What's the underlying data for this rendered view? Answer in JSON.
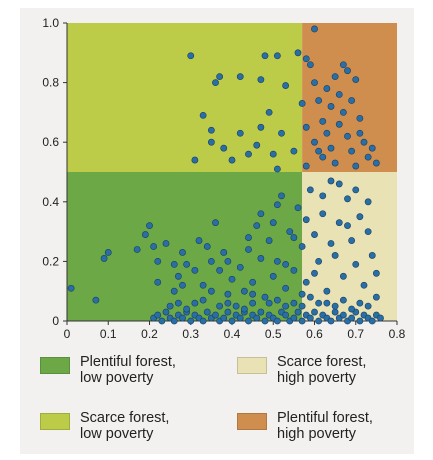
{
  "chart_data": {
    "type": "scatter",
    "title": "",
    "xlabel": "",
    "ylabel": "",
    "xlim": [
      0,
      0.8
    ],
    "ylim": [
      0,
      1.0
    ],
    "x_ticks": [
      "0",
      "0.1",
      "0.2",
      "0.3",
      "0.4",
      "0.5",
      "0.6",
      "0.7",
      "0.8"
    ],
    "y_ticks": [
      "0",
      "0.2",
      "0.4",
      "0.6",
      "0.8",
      "1.0"
    ],
    "grid": false,
    "legend_position": "bottom",
    "regions": [
      {
        "label": "Plentiful forest,\nlow poverty",
        "color": "#6ca846",
        "x": [
          0,
          0.57
        ],
        "y": [
          0,
          0.5
        ]
      },
      {
        "label": "Scarce forest,\nhigh poverty",
        "color": "#e9e2b4",
        "x": [
          0.57,
          0.8
        ],
        "y": [
          0,
          0.5
        ]
      },
      {
        "label": "Scarce forest,\nlow poverty",
        "color": "#bccc48",
        "x": [
          0,
          0.57
        ],
        "y": [
          0.5,
          1.0
        ]
      },
      {
        "label": "Plentiful forest,\nhigh poverty",
        "color": "#cf8e4e",
        "x": [
          0.57,
          0.8
        ],
        "y": [
          0.5,
          1.0
        ]
      }
    ],
    "marker_color": "#2a6ea6",
    "points": [
      [
        0.01,
        0.11
      ],
      [
        0.07,
        0.07
      ],
      [
        0.09,
        0.21
      ],
      [
        0.1,
        0.23
      ],
      [
        0.17,
        0.24
      ],
      [
        0.19,
        0.29
      ],
      [
        0.2,
        0.32
      ],
      [
        0.21,
        0.25
      ],
      [
        0.22,
        0.2
      ],
      [
        0.24,
        0.26
      ],
      [
        0.26,
        0.19
      ],
      [
        0.27,
        0.15
      ],
      [
        0.28,
        0.23
      ],
      [
        0.28,
        0.12
      ],
      [
        0.29,
        0.19
      ],
      [
        0.31,
        0.17
      ],
      [
        0.32,
        0.27
      ],
      [
        0.33,
        0.12
      ],
      [
        0.34,
        0.25
      ],
      [
        0.35,
        0.2
      ],
      [
        0.36,
        0.33
      ],
      [
        0.37,
        0.17
      ],
      [
        0.38,
        0.23
      ],
      [
        0.39,
        0.09
      ],
      [
        0.4,
        0.14
      ],
      [
        0.41,
        0.05
      ],
      [
        0.42,
        0.18
      ],
      [
        0.43,
        0.1
      ],
      [
        0.44,
        0.24
      ],
      [
        0.45,
        0.13
      ],
      [
        0.46,
        0.32
      ],
      [
        0.47,
        0.21
      ],
      [
        0.48,
        0.08
      ],
      [
        0.49,
        0.27
      ],
      [
        0.5,
        0.15
      ],
      [
        0.5,
        0.33
      ],
      [
        0.51,
        0.2
      ],
      [
        0.52,
        0.42
      ],
      [
        0.53,
        0.11
      ],
      [
        0.54,
        0.3
      ],
      [
        0.55,
        0.17
      ],
      [
        0.56,
        0.38
      ],
      [
        0.57,
        0.25
      ],
      [
        0.58,
        0.13
      ],
      [
        0.59,
        0.44
      ],
      [
        0.6,
        0.29
      ],
      [
        0.61,
        0.2
      ],
      [
        0.62,
        0.36
      ],
      [
        0.63,
        0.1
      ],
      [
        0.64,
        0.47
      ],
      [
        0.65,
        0.22
      ],
      [
        0.66,
        0.33
      ],
      [
        0.67,
        0.15
      ],
      [
        0.68,
        0.41
      ],
      [
        0.69,
        0.27
      ],
      [
        0.7,
        0.19
      ],
      [
        0.71,
        0.35
      ],
      [
        0.72,
        0.12
      ],
      [
        0.73,
        0.3
      ],
      [
        0.74,
        0.22
      ],
      [
        0.75,
        0.16
      ],
      [
        0.44,
        0.28
      ],
      [
        0.47,
        0.36
      ],
      [
        0.51,
        0.39
      ],
      [
        0.55,
        0.28
      ],
      [
        0.58,
        0.34
      ],
      [
        0.62,
        0.42
      ],
      [
        0.66,
        0.46
      ],
      [
        0.7,
        0.44
      ],
      [
        0.73,
        0.4
      ],
      [
        0.6,
        0.16
      ],
      [
        0.64,
        0.26
      ],
      [
        0.68,
        0.32
      ],
      [
        0.53,
        0.19
      ],
      [
        0.57,
        0.09
      ],
      [
        0.45,
        0.06
      ],
      [
        0.39,
        0.2
      ],
      [
        0.35,
        0.1
      ],
      [
        0.31,
        0.06
      ],
      [
        0.26,
        0.1
      ],
      [
        0.22,
        0.13
      ],
      [
        0.21,
        0.01
      ],
      [
        0.22,
        0.02
      ],
      [
        0.23,
        0.0
      ],
      [
        0.24,
        0.03
      ],
      [
        0.25,
        0.01
      ],
      [
        0.26,
        0.0
      ],
      [
        0.27,
        0.02
      ],
      [
        0.28,
        0.01
      ],
      [
        0.29,
        0.03
      ],
      [
        0.3,
        0.0
      ],
      [
        0.31,
        0.02
      ],
      [
        0.32,
        0.01
      ],
      [
        0.33,
        0.0
      ],
      [
        0.34,
        0.03
      ],
      [
        0.35,
        0.01
      ],
      [
        0.36,
        0.02
      ],
      [
        0.37,
        0.0
      ],
      [
        0.38,
        0.01
      ],
      [
        0.39,
        0.03
      ],
      [
        0.4,
        0.0
      ],
      [
        0.41,
        0.02
      ],
      [
        0.42,
        0.01
      ],
      [
        0.43,
        0.03
      ],
      [
        0.44,
        0.0
      ],
      [
        0.45,
        0.02
      ],
      [
        0.46,
        0.01
      ],
      [
        0.47,
        0.03
      ],
      [
        0.48,
        0.0
      ],
      [
        0.49,
        0.02
      ],
      [
        0.5,
        0.01
      ],
      [
        0.51,
        0.0
      ],
      [
        0.52,
        0.03
      ],
      [
        0.53,
        0.02
      ],
      [
        0.54,
        0.0
      ],
      [
        0.55,
        0.01
      ],
      [
        0.56,
        0.03
      ],
      [
        0.57,
        0.0
      ],
      [
        0.58,
        0.02
      ],
      [
        0.59,
        0.01
      ],
      [
        0.6,
        0.03
      ],
      [
        0.61,
        0.0
      ],
      [
        0.62,
        0.02
      ],
      [
        0.63,
        0.01
      ],
      [
        0.64,
        0.0
      ],
      [
        0.65,
        0.03
      ],
      [
        0.66,
        0.01
      ],
      [
        0.67,
        0.02
      ],
      [
        0.68,
        0.0
      ],
      [
        0.69,
        0.01
      ],
      [
        0.7,
        0.03
      ],
      [
        0.71,
        0.0
      ],
      [
        0.72,
        0.02
      ],
      [
        0.73,
        0.01
      ],
      [
        0.74,
        0.0
      ],
      [
        0.75,
        0.02
      ],
      [
        0.76,
        0.01
      ],
      [
        0.27,
        0.06
      ],
      [
        0.33,
        0.07
      ],
      [
        0.39,
        0.06
      ],
      [
        0.45,
        0.09
      ],
      [
        0.51,
        0.07
      ],
      [
        0.55,
        0.06
      ],
      [
        0.59,
        0.08
      ],
      [
        0.63,
        0.06
      ],
      [
        0.67,
        0.07
      ],
      [
        0.71,
        0.06
      ],
      [
        0.75,
        0.08
      ],
      [
        0.57,
        0.05
      ],
      [
        0.61,
        0.06
      ],
      [
        0.65,
        0.05
      ],
      [
        0.69,
        0.04
      ],
      [
        0.73,
        0.05
      ],
      [
        0.53,
        0.05
      ],
      [
        0.49,
        0.06
      ],
      [
        0.43,
        0.04
      ],
      [
        0.37,
        0.05
      ],
      [
        0.29,
        0.04
      ],
      [
        0.25,
        0.05
      ],
      [
        0.3,
        0.89
      ],
      [
        0.36,
        0.8
      ],
      [
        0.37,
        0.82
      ],
      [
        0.42,
        0.82
      ],
      [
        0.47,
        0.81
      ],
      [
        0.48,
        0.89
      ],
      [
        0.51,
        0.89
      ],
      [
        0.56,
        0.9
      ],
      [
        0.58,
        0.88
      ],
      [
        0.33,
        0.69
      ],
      [
        0.35,
        0.64
      ],
      [
        0.35,
        0.6
      ],
      [
        0.42,
        0.63
      ],
      [
        0.47,
        0.65
      ],
      [
        0.31,
        0.54
      ],
      [
        0.4,
        0.54
      ],
      [
        0.46,
        0.59
      ],
      [
        0.5,
        0.56
      ],
      [
        0.52,
        0.63
      ],
      [
        0.53,
        0.79
      ],
      [
        0.49,
        0.7
      ],
      [
        0.57,
        0.73
      ],
      [
        0.6,
        0.98
      ],
      [
        0.59,
        0.86
      ],
      [
        0.6,
        0.8
      ],
      [
        0.61,
        0.74
      ],
      [
        0.62,
        0.67
      ],
      [
        0.63,
        0.63
      ],
      [
        0.64,
        0.58
      ],
      [
        0.65,
        0.53
      ],
      [
        0.66,
        0.76
      ],
      [
        0.67,
        0.7
      ],
      [
        0.68,
        0.62
      ],
      [
        0.69,
        0.57
      ],
      [
        0.7,
        0.52
      ],
      [
        0.71,
        0.68
      ],
      [
        0.72,
        0.6
      ],
      [
        0.73,
        0.55
      ],
      [
        0.67,
        0.86
      ],
      [
        0.68,
        0.84
      ],
      [
        0.7,
        0.81
      ],
      [
        0.58,
        0.65
      ],
      [
        0.6,
        0.6
      ],
      [
        0.62,
        0.55
      ],
      [
        0.64,
        0.72
      ],
      [
        0.66,
        0.66
      ],
      [
        0.69,
        0.74
      ],
      [
        0.71,
        0.63
      ],
      [
        0.74,
        0.58
      ],
      [
        0.75,
        0.53
      ],
      [
        0.63,
        0.78
      ],
      [
        0.61,
        0.57
      ],
      [
        0.58,
        0.52
      ],
      [
        0.65,
        0.82
      ],
      [
        0.55,
        0.57
      ],
      [
        0.51,
        0.51
      ],
      [
        0.44,
        0.56
      ],
      [
        0.38,
        0.58
      ]
    ]
  }
}
